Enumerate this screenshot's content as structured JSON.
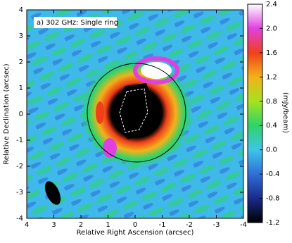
{
  "chart_data": {
    "type": "image",
    "annotation": "a) 302 GHz: Single ring",
    "xlabel": "Relative Right Ascension (arcsec)",
    "ylabel": "Relative Declination (arcsec)",
    "colorbar_label": "(mJy/beam)",
    "xlim": [
      4,
      -4
    ],
    "xticks": [
      4,
      3,
      2,
      1,
      0,
      -1,
      -2,
      -3,
      -4
    ],
    "ylim": [
      -4,
      4
    ],
    "yticks": [
      -4,
      -3,
      -2,
      -1,
      0,
      1,
      2,
      3,
      4
    ],
    "clim": [
      -1.2,
      2.4
    ],
    "cticks": [
      {
        "value": -1.2,
        "label": "-1.2"
      },
      {
        "value": -0.8,
        "label": "-0.8"
      },
      {
        "value": -0.4,
        "label": "-0.4"
      },
      {
        "value": 0,
        "label": "0.0"
      },
      {
        "value": 0.4,
        "label": "0.4"
      },
      {
        "value": 0.8,
        "label": "0.8"
      },
      {
        "value": 1.2,
        "label": "1.2"
      },
      {
        "value": 1.6,
        "label": "1.6"
      },
      {
        "value": 2.0,
        "label": "2.0"
      },
      {
        "value": 2.4,
        "label": "2.4"
      }
    ],
    "colormap": [
      "#000000",
      "#1a2a8c",
      "#2f6fd6",
      "#3fc4ea",
      "#2ed46a",
      "#a6e21e",
      "#f2b21a",
      "#f0401a",
      "#e040e0",
      "#ffffff"
    ]
  }
}
